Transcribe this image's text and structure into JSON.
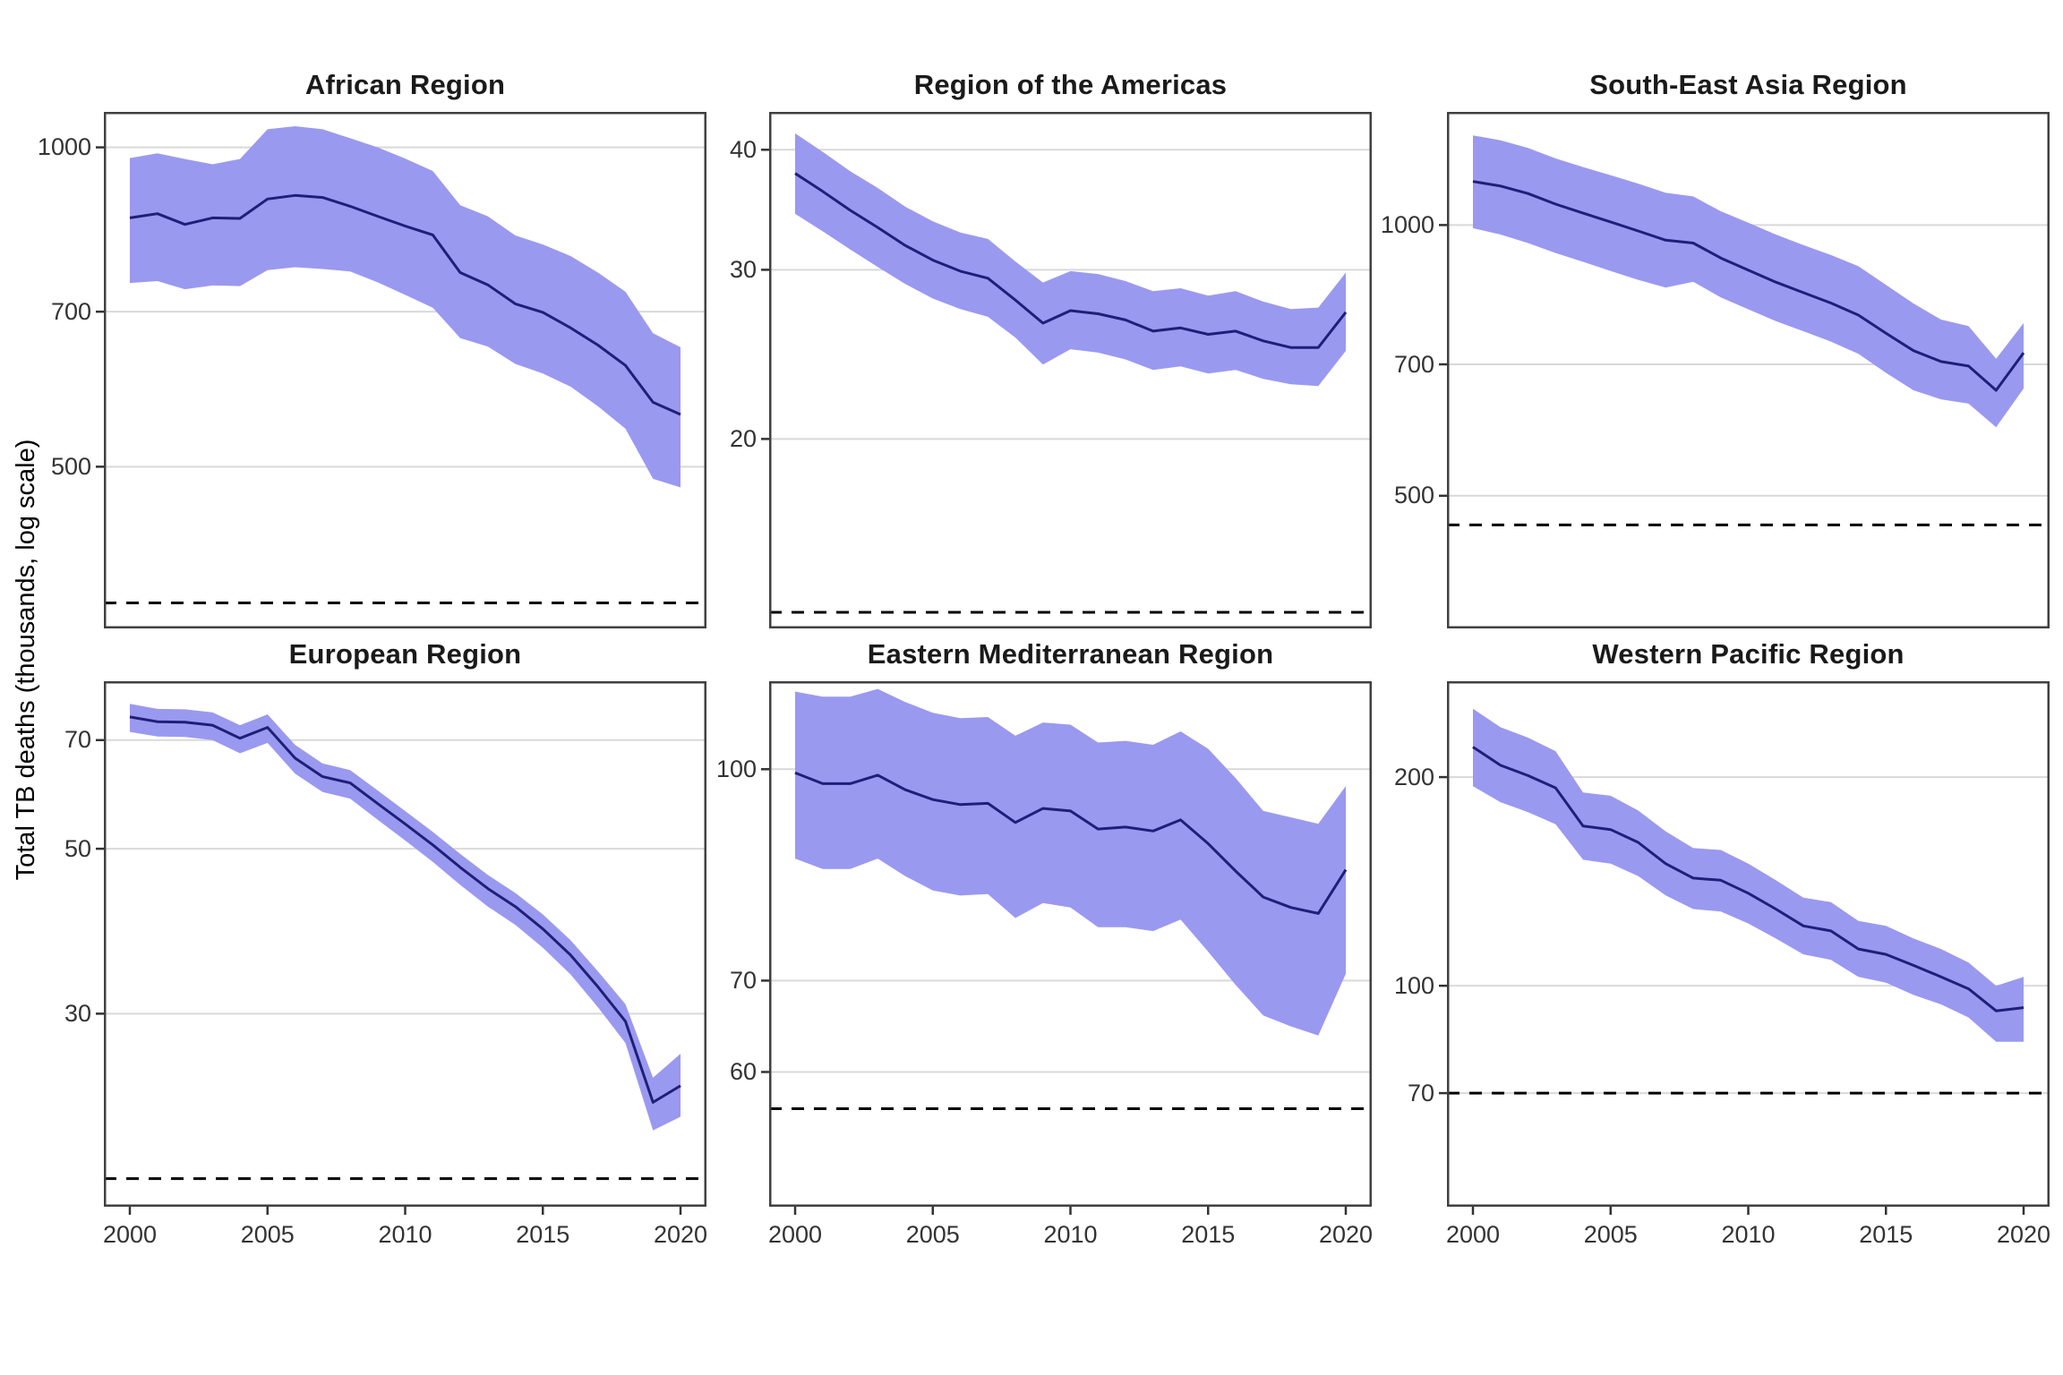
{
  "figure": {
    "ylabel": "Total TB deaths (thousands, log scale)",
    "colors": {
      "ribbon": "#9a99f0",
      "line": "#1f1f78",
      "gridline": "#d9d9d9",
      "panel_border": "#404040",
      "dashed_line": "#000000",
      "tick_text": "#333333",
      "background": "#ffffff"
    }
  },
  "chart_data": [
    {
      "type": "line",
      "title": "African Region",
      "grid": {
        "row": 0,
        "col": 0
      },
      "ylog": true,
      "ylim": [
        352,
        1080
      ],
      "yticks": [
        1000,
        700,
        500
      ],
      "ytick_labels": [
        "1000",
        "700",
        "500"
      ],
      "dashed_line_value": 372,
      "show_x_axis": false,
      "xlim": [
        2000,
        2020
      ],
      "xticks": [
        2000,
        2005,
        2010,
        2015,
        2020
      ],
      "xtick_labels": [
        "2000",
        "2005",
        "2010",
        "2015",
        "2020"
      ],
      "x": [
        2000,
        2001,
        2002,
        2003,
        2004,
        2005,
        2006,
        2007,
        2008,
        2009,
        2010,
        2011,
        2012,
        2013,
        2014,
        2015,
        2016,
        2017,
        2018,
        2019,
        2020
      ],
      "series": [
        {
          "name": "best estimate",
          "values": [
            858,
            866,
            846,
            858,
            857,
            894,
            901,
            897,
            880,
            861,
            843,
            827,
            762,
            742,
            712,
            699,
            676,
            651,
            623,
            575,
            560
          ]
        },
        {
          "name": "lower bound",
          "values": [
            745,
            748,
            735,
            741,
            740,
            766,
            771,
            768,
            764,
            746,
            726,
            706,
            661,
            649,
            625,
            612,
            595,
            570,
            543,
            487,
            478
          ]
        },
        {
          "name": "upper bound",
          "values": [
            977,
            987,
            975,
            964,
            975,
            1040,
            1047,
            1040,
            1020,
            1000,
            976,
            950,
            882,
            861,
            826,
            810,
            790,
            762,
            731,
            668,
            648
          ]
        }
      ]
    },
    {
      "type": "line",
      "title": "Region of the Americas",
      "grid": {
        "row": 0,
        "col": 1
      },
      "ylog": true,
      "ylim": [
        12.7,
        43.8
      ],
      "yticks": [
        40,
        30,
        20
      ],
      "ytick_labels": [
        "40",
        "30",
        "20"
      ],
      "dashed_line_value": 13.2,
      "show_x_axis": false,
      "xlim": [
        2000,
        2020
      ],
      "xticks": [
        2000,
        2005,
        2010,
        2015,
        2020
      ],
      "xtick_labels": [
        "2000",
        "2005",
        "2010",
        "2015",
        "2020"
      ],
      "x": [
        2000,
        2001,
        2002,
        2003,
        2004,
        2005,
        2006,
        2007,
        2008,
        2009,
        2010,
        2011,
        2012,
        2013,
        2014,
        2015,
        2016,
        2017,
        2018,
        2019,
        2020
      ],
      "series": [
        {
          "name": "best estimate",
          "values": [
            37.8,
            36.2,
            34.6,
            33.2,
            31.8,
            30.7,
            29.9,
            29.4,
            27.9,
            26.4,
            27.2,
            27.0,
            26.6,
            25.9,
            26.1,
            25.7,
            25.9,
            25.3,
            24.9,
            24.9,
            27.1
          ]
        },
        {
          "name": "lower bound",
          "values": [
            34.3,
            32.9,
            31.5,
            30.2,
            29.0,
            28.0,
            27.3,
            26.8,
            25.5,
            23.9,
            24.8,
            24.6,
            24.2,
            23.6,
            23.8,
            23.4,
            23.6,
            23.1,
            22.8,
            22.7,
            24.7
          ]
        },
        {
          "name": "upper bound",
          "values": [
            41.6,
            39.8,
            38.0,
            36.5,
            34.9,
            33.7,
            32.8,
            32.3,
            30.6,
            29.1,
            29.9,
            29.7,
            29.2,
            28.5,
            28.7,
            28.2,
            28.5,
            27.8,
            27.3,
            27.4,
            29.8
          ]
        }
      ]
    },
    {
      "type": "line",
      "title": "South-East Asia Region",
      "grid": {
        "row": 0,
        "col": 2
      },
      "ylog": true,
      "ylim": [
        356,
        1336
      ],
      "yticks": [
        1000,
        700,
        500
      ],
      "ytick_labels": [
        "1000",
        "700",
        "500"
      ],
      "dashed_line_value": 464,
      "show_x_axis": false,
      "xlim": [
        2000,
        2020
      ],
      "xticks": [
        2000,
        2005,
        2010,
        2015,
        2020
      ],
      "xtick_labels": [
        "2000",
        "2005",
        "2010",
        "2015",
        "2020"
      ],
      "x": [
        2000,
        2001,
        2002,
        2003,
        2004,
        2005,
        2006,
        2007,
        2008,
        2009,
        2010,
        2011,
        2012,
        2013,
        2014,
        2015,
        2016,
        2017,
        2018,
        2019,
        2020
      ],
      "series": [
        {
          "name": "best estimate",
          "values": [
            1118,
            1105,
            1084,
            1055,
            1031,
            1008,
            985,
            962,
            955,
            919,
            891,
            864,
            841,
            819,
            794,
            758,
            725,
            705,
            697,
            655,
            721
          ]
        },
        {
          "name": "lower bound",
          "values": [
            992,
            976,
            955,
            931,
            910,
            889,
            869,
            852,
            865,
            831,
            806,
            782,
            762,
            742,
            719,
            685,
            655,
            640,
            633,
            596,
            658
          ]
        },
        {
          "name": "upper bound",
          "values": [
            1258,
            1242,
            1218,
            1186,
            1160,
            1136,
            1112,
            1086,
            1076,
            1036,
            1006,
            976,
            950,
            926,
            900,
            858,
            818,
            785,
            772,
            710,
            778
          ]
        }
      ]
    },
    {
      "type": "line",
      "title": "European Region",
      "grid": {
        "row": 1,
        "col": 0
      },
      "ylog": true,
      "ylim": [
        16.5,
        84
      ],
      "yticks": [
        70,
        50,
        30
      ],
      "ytick_labels": [
        "70",
        "50",
        "30"
      ],
      "dashed_line_value": 18,
      "show_x_axis": true,
      "xlim": [
        2000,
        2020
      ],
      "xticks": [
        2000,
        2005,
        2010,
        2015,
        2020
      ],
      "xtick_labels": [
        "2000",
        "2005",
        "2010",
        "2015",
        "2020"
      ],
      "x": [
        2000,
        2001,
        2002,
        2003,
        2004,
        2005,
        2006,
        2007,
        2008,
        2009,
        2010,
        2011,
        2012,
        2013,
        2014,
        2015,
        2016,
        2017,
        2018,
        2019,
        2020
      ],
      "series": [
        {
          "name": "best estimate",
          "values": [
            75.2,
            74.1,
            74.0,
            73.3,
            70.4,
            72.8,
            66.2,
            62.5,
            61.3,
            57.5,
            54.0,
            50.6,
            47.2,
            44.2,
            41.8,
            39.0,
            36.0,
            32.6,
            29.3,
            22.8,
            24.0
          ]
        },
        {
          "name": "lower bound",
          "values": [
            71.8,
            70.8,
            70.7,
            70.0,
            67.2,
            69.4,
            63.1,
            59.6,
            58.4,
            54.7,
            51.3,
            48.0,
            44.7,
            41.8,
            39.5,
            36.8,
            33.9,
            30.6,
            27.4,
            20.9,
            21.8
          ]
        },
        {
          "name": "upper bound",
          "values": [
            78.3,
            77.1,
            77.0,
            76.3,
            73.3,
            75.8,
            69.0,
            65.1,
            63.8,
            59.9,
            56.2,
            52.7,
            49.2,
            46.1,
            43.6,
            40.8,
            37.7,
            34.2,
            30.9,
            24.6,
            26.5
          ]
        }
      ]
    },
    {
      "type": "line",
      "title": "Eastern Mediterranean Region",
      "grid": {
        "row": 1,
        "col": 1
      },
      "ylog": true,
      "ylim": [
        47.8,
        116
      ],
      "yticks": [
        100,
        70,
        60
      ],
      "ytick_labels": [
        "100",
        "70",
        "60"
      ],
      "dashed_line_value": 56.4,
      "show_x_axis": true,
      "xlim": [
        2000,
        2020
      ],
      "xticks": [
        2000,
        2005,
        2010,
        2015,
        2020
      ],
      "xtick_labels": [
        "2000",
        "2005",
        "2010",
        "2015",
        "2020"
      ],
      "x": [
        2000,
        2001,
        2002,
        2003,
        2004,
        2005,
        2006,
        2007,
        2008,
        2009,
        2010,
        2011,
        2012,
        2013,
        2014,
        2015,
        2016,
        2017,
        2018,
        2019,
        2020
      ],
      "series": [
        {
          "name": "best estimate",
          "values": [
            99.4,
            97.6,
            97.6,
            99.0,
            96.6,
            95.0,
            94.2,
            94.4,
            91.4,
            93.6,
            93.2,
            90.4,
            90.7,
            90.1,
            91.8,
            88.2,
            84.2,
            80.6,
            79.2,
            78.4,
            84.4
          ]
        },
        {
          "name": "lower bound",
          "values": [
            86.0,
            84.5,
            84.5,
            86.0,
            83.5,
            81.5,
            80.8,
            81.0,
            77.8,
            79.8,
            79.2,
            76.6,
            76.6,
            76.1,
            77.6,
            73.5,
            69.5,
            66.0,
            64.8,
            63.8,
            70.8
          ]
        },
        {
          "name": "upper bound",
          "values": [
            114,
            113,
            113,
            114.5,
            112,
            110,
            109,
            109.2,
            105.8,
            108.2,
            107.8,
            104.6,
            104.9,
            104.2,
            106.6,
            103.5,
            98.5,
            93.2,
            92.2,
            91.2,
            97.2
          ]
        }
      ]
    },
    {
      "type": "line",
      "title": "Western Pacific Region",
      "grid": {
        "row": 1,
        "col": 2
      },
      "ylog": true,
      "ylim": [
        48,
        275
      ],
      "yticks": [
        200,
        100,
        70
      ],
      "ytick_labels": [
        "200",
        "100",
        "70"
      ],
      "dashed_line_value": 70,
      "show_x_axis": true,
      "xlim": [
        2000,
        2020
      ],
      "xticks": [
        2000,
        2005,
        2010,
        2015,
        2020
      ],
      "xtick_labels": [
        "2000",
        "2005",
        "2010",
        "2015",
        "2020"
      ],
      "x": [
        2000,
        2001,
        2002,
        2003,
        2004,
        2005,
        2006,
        2007,
        2008,
        2009,
        2010,
        2011,
        2012,
        2013,
        2014,
        2015,
        2016,
        2017,
        2018,
        2019,
        2020
      ],
      "series": [
        {
          "name": "best estimate",
          "values": [
            221,
            208,
            201,
            193,
            170,
            168,
            161,
            150,
            143,
            142,
            136,
            129,
            122,
            120,
            113,
            111,
            107,
            103,
            99,
            92,
            93
          ]
        },
        {
          "name": "lower bound",
          "values": [
            194,
            184,
            178,
            171,
            152,
            150,
            144,
            135,
            129,
            128,
            123,
            117,
            111,
            109,
            103,
            101,
            97,
            94,
            90,
            83,
            83
          ]
        },
        {
          "name": "upper bound",
          "values": [
            251,
            236,
            228,
            218,
            190,
            188,
            179,
            167,
            158,
            157,
            150,
            142,
            134,
            132,
            124,
            122,
            117,
            113,
            108,
            100,
            103
          ]
        }
      ]
    }
  ]
}
